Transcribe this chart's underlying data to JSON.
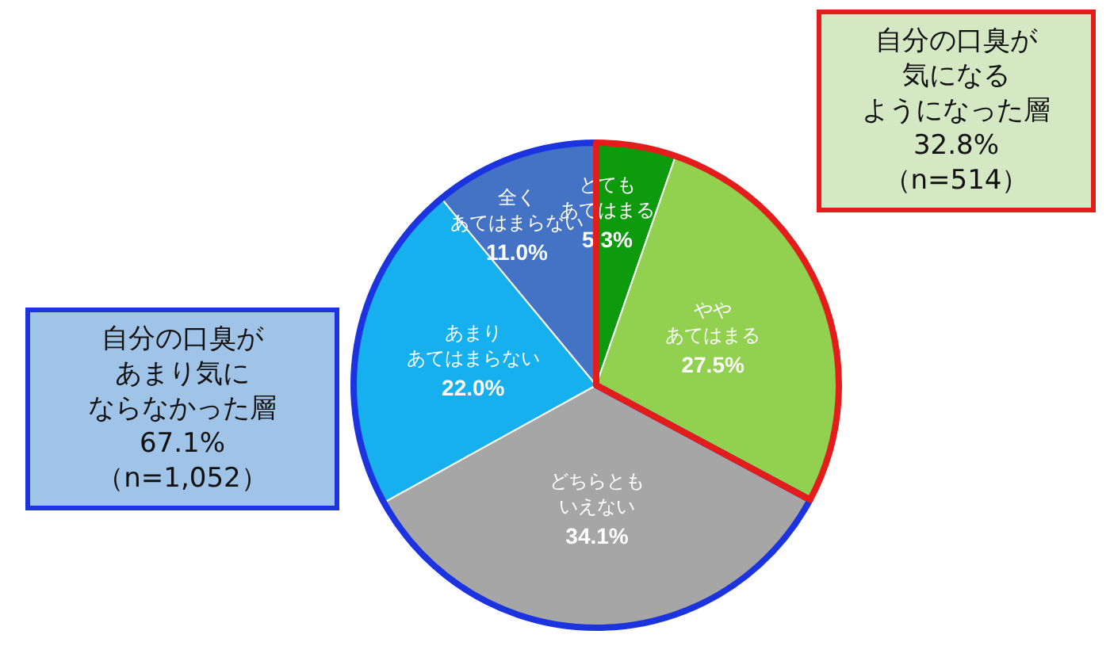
{
  "chart_data": {
    "type": "pie",
    "categories": [
      "とてもあてはまる",
      "ややあてはまる",
      "どちらともいえない",
      "あまりあてはまらない",
      "全くあてはまらない"
    ],
    "values": [
      5.3,
      27.5,
      34.1,
      22.0,
      11.0
    ],
    "value_labels": [
      "5.3%",
      "27.5%",
      "34.1%",
      "22.0%",
      "11.0%"
    ],
    "colors": [
      "#0d9a0d",
      "#92d050",
      "#a6a6a6",
      "#17b0ef",
      "#4472c4"
    ],
    "annotations": [
      "自分の口臭が気になるようになった層32.8%（n=514）",
      "自分の口臭があまり気にならなかった層67.1%（n=1,052）"
    ],
    "legend": false
  }
}
